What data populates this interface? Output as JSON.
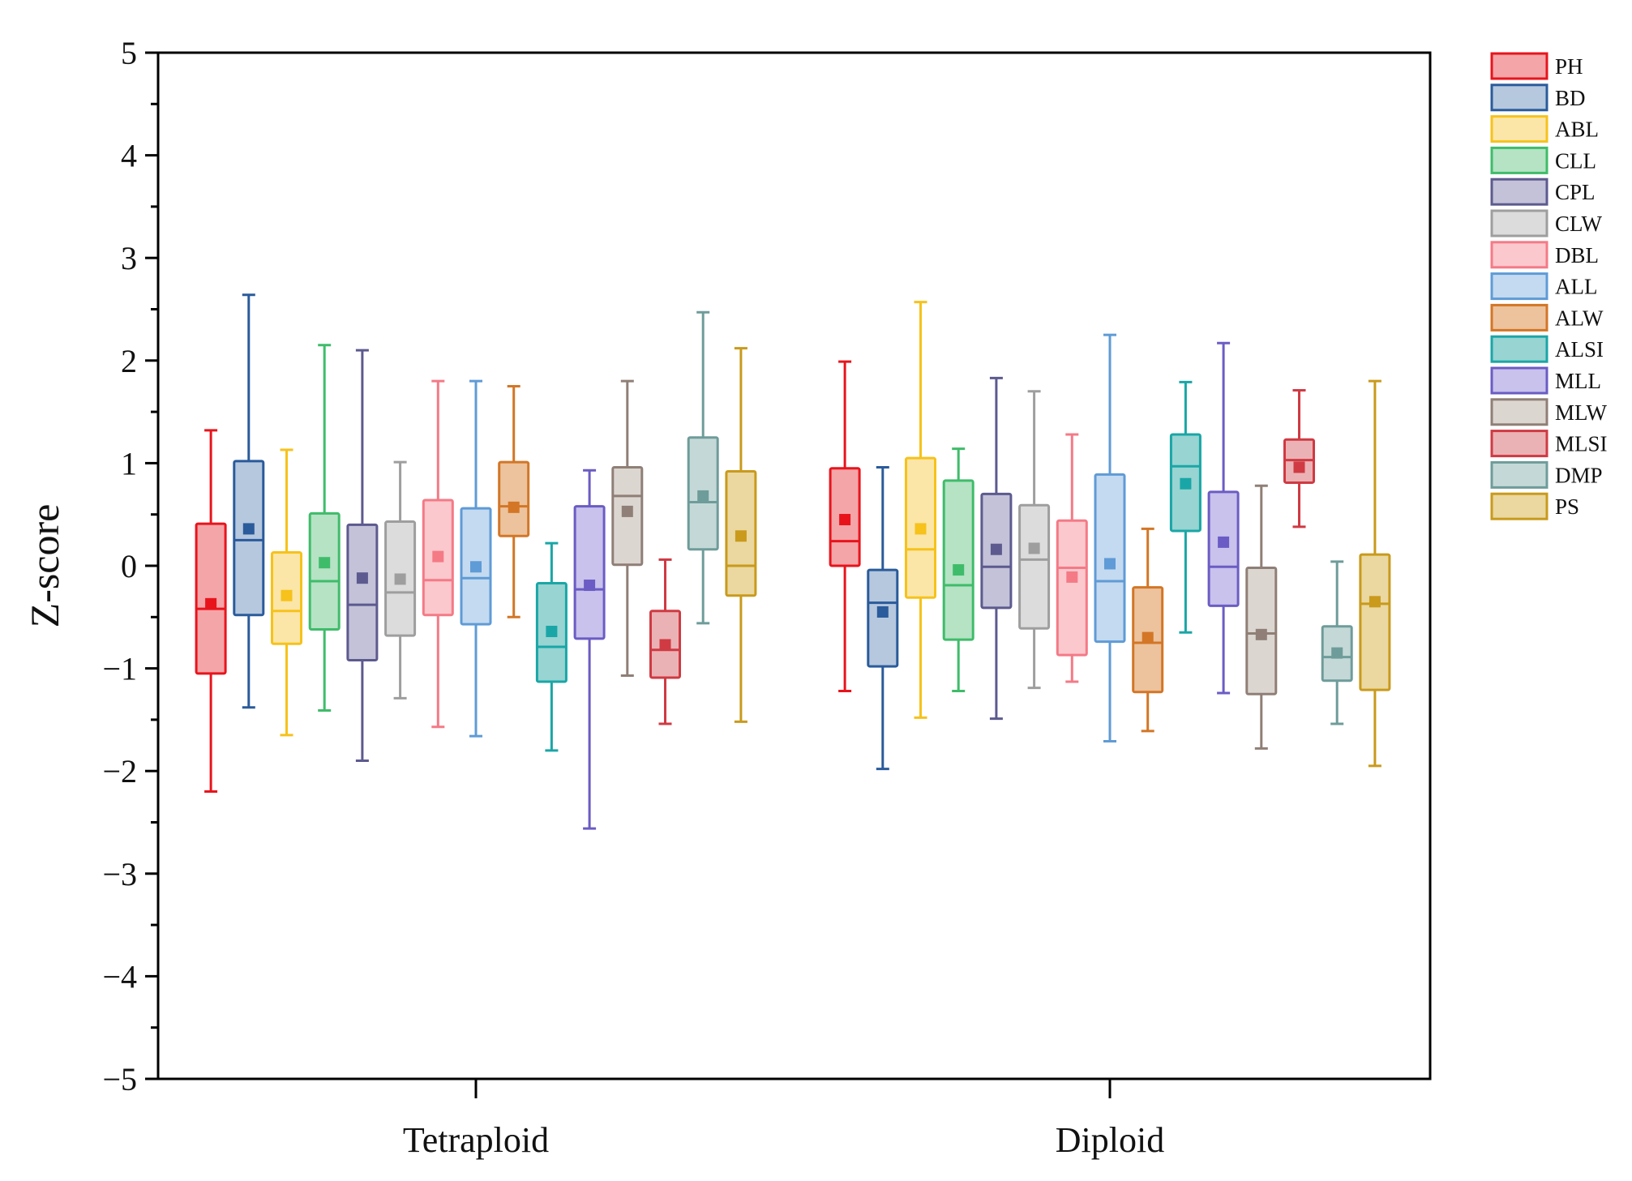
{
  "chart_data": {
    "type": "box",
    "ylabel": "Z-score",
    "xlabel": "",
    "ylim": [
      -5,
      5
    ],
    "yticks": [
      "5",
      "4",
      "3",
      "2",
      "1",
      "0",
      "−1",
      "−2",
      "−3",
      "−4",
      "−5"
    ],
    "ytick_values": [
      5,
      4,
      3,
      2,
      1,
      0,
      -1,
      -2,
      -3,
      -4,
      -5
    ],
    "categories": [
      "Tetraploid",
      "Diploid"
    ],
    "legend_position": "right",
    "grid": false,
    "series": [
      {
        "name": "PH",
        "color": "#e8141c",
        "fill": "#f4a5a8",
        "stats": [
          {
            "min": -2.2,
            "q1": -1.05,
            "median": -0.42,
            "q3": 0.41,
            "max": 1.32,
            "mean": -0.37
          },
          {
            "min": -1.22,
            "q1": 0.0,
            "median": 0.24,
            "q3": 0.95,
            "max": 1.99,
            "mean": 0.45
          }
        ]
      },
      {
        "name": "BD",
        "color": "#2a5b9b",
        "fill": "#b6c8de",
        "stats": [
          {
            "min": -1.38,
            "q1": -0.48,
            "median": 0.25,
            "q3": 1.02,
            "max": 2.64,
            "mean": 0.36
          },
          {
            "min": -1.98,
            "q1": -0.98,
            "median": -0.36,
            "q3": -0.04,
            "max": 0.96,
            "mean": -0.45
          }
        ]
      },
      {
        "name": "ABL",
        "color": "#f6c21b",
        "fill": "#fbe6a8",
        "stats": [
          {
            "min": -1.65,
            "q1": -0.76,
            "median": -0.44,
            "q3": 0.13,
            "max": 1.13,
            "mean": -0.29
          },
          {
            "min": -1.48,
            "q1": -0.31,
            "median": 0.16,
            "q3": 1.05,
            "max": 2.57,
            "mean": 0.36
          }
        ]
      },
      {
        "name": "CLL",
        "color": "#3fbc6a",
        "fill": "#b5e3c4",
        "stats": [
          {
            "min": -1.41,
            "q1": -0.62,
            "median": -0.15,
            "q3": 0.51,
            "max": 2.15,
            "mean": 0.03
          },
          {
            "min": -1.22,
            "q1": -0.72,
            "median": -0.19,
            "q3": 0.83,
            "max": 1.14,
            "mean": -0.04
          }
        ]
      },
      {
        "name": "CPL",
        "color": "#5c5a8e",
        "fill": "#c3c2d8",
        "stats": [
          {
            "min": -1.9,
            "q1": -0.92,
            "median": -0.38,
            "q3": 0.4,
            "max": 2.1,
            "mean": -0.12
          },
          {
            "min": -1.49,
            "q1": -0.41,
            "median": -0.01,
            "q3": 0.7,
            "max": 1.83,
            "mean": 0.16
          }
        ]
      },
      {
        "name": "CLW",
        "color": "#9e9e9e",
        "fill": "#dcdcdc",
        "stats": [
          {
            "min": -1.29,
            "q1": -0.68,
            "median": -0.26,
            "q3": 0.43,
            "max": 1.01,
            "mean": -0.13
          },
          {
            "min": -1.19,
            "q1": -0.61,
            "median": 0.06,
            "q3": 0.59,
            "max": 1.7,
            "mean": 0.17
          }
        ]
      },
      {
        "name": "DBL",
        "color": "#f47a86",
        "fill": "#fbc8cd",
        "stats": [
          {
            "min": -1.57,
            "q1": -0.48,
            "median": -0.14,
            "q3": 0.64,
            "max": 1.8,
            "mean": 0.09
          },
          {
            "min": -1.13,
            "q1": -0.87,
            "median": -0.02,
            "q3": 0.44,
            "max": 1.28,
            "mean": -0.11
          }
        ]
      },
      {
        "name": "ALL",
        "color": "#5f9bd6",
        "fill": "#c4daf0",
        "stats": [
          {
            "min": -1.66,
            "q1": -0.57,
            "median": -0.12,
            "q3": 0.56,
            "max": 1.8,
            "mean": -0.01
          },
          {
            "min": -1.71,
            "q1": -0.74,
            "median": -0.15,
            "q3": 0.89,
            "max": 2.25,
            "mean": 0.02
          }
        ]
      },
      {
        "name": "ALW",
        "color": "#d37626",
        "fill": "#ecc39d",
        "stats": [
          {
            "min": -0.5,
            "q1": 0.29,
            "median": 0.58,
            "q3": 1.01,
            "max": 1.75,
            "mean": 0.57
          },
          {
            "min": -1.61,
            "q1": -1.23,
            "median": -0.75,
            "q3": -0.21,
            "max": 0.36,
            "mean": -0.7
          }
        ]
      },
      {
        "name": "ALSI",
        "color": "#1aa6a6",
        "fill": "#98d4d2",
        "stats": [
          {
            "min": -1.8,
            "q1": -1.13,
            "median": -0.79,
            "q3": -0.17,
            "max": 0.22,
            "mean": -0.64
          },
          {
            "min": -0.65,
            "q1": 0.34,
            "median": 0.97,
            "q3": 1.28,
            "max": 1.79,
            "mean": 0.8
          }
        ]
      },
      {
        "name": "MLL",
        "color": "#6a5cc4",
        "fill": "#c8c2ec",
        "stats": [
          {
            "min": -2.56,
            "q1": -0.71,
            "median": -0.23,
            "q3": 0.58,
            "max": 0.93,
            "mean": -0.19
          },
          {
            "min": -1.24,
            "q1": -0.39,
            "median": -0.01,
            "q3": 0.72,
            "max": 2.17,
            "mean": 0.23
          }
        ]
      },
      {
        "name": "MLW",
        "color": "#8f7f76",
        "fill": "#dcd6d1",
        "stats": [
          {
            "min": -1.07,
            "q1": 0.01,
            "median": 0.68,
            "q3": 0.96,
            "max": 1.8,
            "mean": 0.53
          },
          {
            "min": -1.78,
            "q1": -1.25,
            "median": -0.66,
            "q3": -0.02,
            "max": 0.78,
            "mean": -0.67
          }
        ]
      },
      {
        "name": "MLSI",
        "color": "#cf3a43",
        "fill": "#ebb2b5",
        "stats": [
          {
            "min": -1.54,
            "q1": -1.09,
            "median": -0.82,
            "q3": -0.44,
            "max": 0.06,
            "mean": -0.77
          },
          {
            "min": 0.38,
            "q1": 0.81,
            "median": 1.03,
            "q3": 1.23,
            "max": 1.71,
            "mean": 0.96
          }
        ]
      },
      {
        "name": "DMP",
        "color": "#6e9c9a",
        "fill": "#c4d9d7",
        "stats": [
          {
            "min": -0.56,
            "q1": 0.16,
            "median": 0.62,
            "q3": 1.25,
            "max": 2.47,
            "mean": 0.68
          },
          {
            "min": -1.54,
            "q1": -1.12,
            "median": -0.89,
            "q3": -0.59,
            "max": 0.04,
            "mean": -0.85
          }
        ]
      },
      {
        "name": "PS",
        "color": "#c99a1c",
        "fill": "#ead8a0",
        "stats": [
          {
            "min": -1.52,
            "q1": -0.29,
            "median": 0.0,
            "q3": 0.92,
            "max": 2.12,
            "mean": 0.29
          },
          {
            "min": -1.95,
            "q1": -1.21,
            "median": -0.37,
            "q3": 0.11,
            "max": 1.8,
            "mean": -0.35
          }
        ]
      }
    ]
  }
}
